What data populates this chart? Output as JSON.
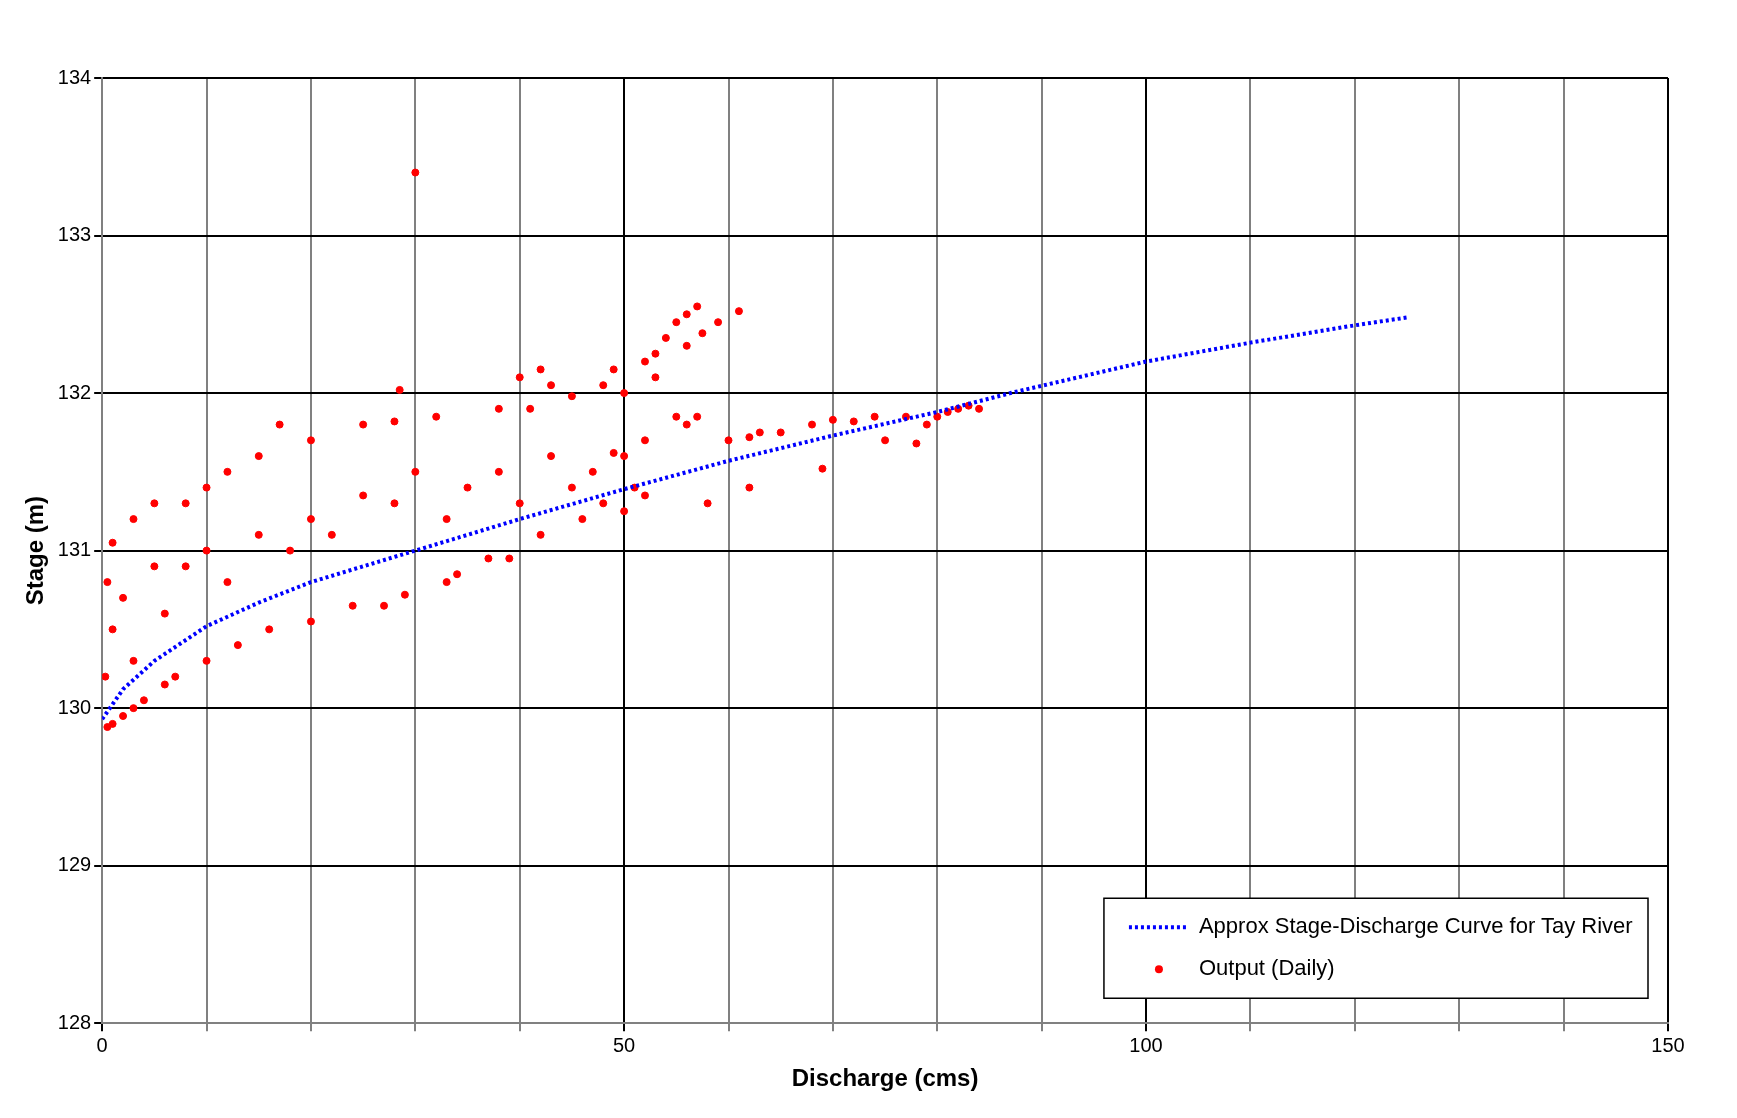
{
  "chart_data": {
    "type": "scatter",
    "xlabel": "Discharge (cms)",
    "ylabel": "Stage (m)",
    "xlim": [
      0,
      150
    ],
    "ylim": [
      128,
      134
    ],
    "xticks": [
      0,
      {
        "value": 10,
        "label": null
      },
      {
        "value": 20,
        "label": null
      },
      {
        "value": 30,
        "label": null
      },
      {
        "value": 40,
        "label": null
      },
      50,
      {
        "value": 60,
        "label": null
      },
      {
        "value": 70,
        "label": null
      },
      {
        "value": 80,
        "label": null
      },
      {
        "value": 90,
        "label": null
      },
      100,
      {
        "value": 110,
        "label": null
      },
      {
        "value": 120,
        "label": null
      },
      {
        "value": 130,
        "label": null
      },
      {
        "value": 140,
        "label": null
      },
      150
    ],
    "yticks": [
      128,
      129,
      130,
      131,
      132,
      133,
      134
    ],
    "grid": true,
    "legend": "bottom right",
    "series": [
      {
        "name": "Approx Stage-Discharge Curve for Tay River",
        "type": "line",
        "line_style": "dotted",
        "marker": "none",
        "color": "#0000ff",
        "x": [
          0,
          2,
          5,
          10,
          15,
          20,
          30,
          40,
          50,
          60,
          70,
          80,
          87,
          100,
          110,
          120,
          125
        ],
        "values": [
          129.93,
          130.12,
          130.3,
          130.52,
          130.67,
          130.8,
          131.0,
          131.2,
          131.39,
          131.57,
          131.73,
          131.88,
          132.0,
          132.2,
          132.32,
          132.43,
          132.48
        ]
      },
      {
        "name": "Output (Daily)",
        "type": "scatter",
        "marker": "circle",
        "color": "#ff0000",
        "x": [
          30,
          28.5,
          1,
          3,
          5,
          8,
          10,
          12,
          15,
          17,
          20,
          25,
          28,
          32,
          38,
          41,
          42,
          43,
          40,
          45,
          48,
          49,
          50,
          52,
          53,
          54,
          55,
          56,
          57,
          57.5,
          56,
          61,
          59,
          53,
          55,
          56,
          57,
          52,
          50,
          47,
          45,
          40,
          35,
          30,
          25,
          20,
          15,
          10,
          5,
          2,
          1,
          0.5,
          0.3,
          3,
          6,
          8,
          12,
          18,
          22,
          28,
          33,
          38,
          43,
          48,
          50,
          51,
          52,
          46,
          42,
          39,
          37,
          34,
          33,
          29,
          27,
          24,
          20,
          16,
          13,
          10,
          7,
          4,
          2,
          1,
          0.5,
          3,
          6,
          60,
          62,
          63,
          65,
          68,
          69,
          70,
          72,
          74,
          75,
          77,
          78,
          79,
          80,
          81,
          82,
          83,
          84,
          62,
          58,
          49
        ],
        "values": [
          133.4,
          132.02,
          131.05,
          131.2,
          131.3,
          131.3,
          131.4,
          131.5,
          131.6,
          131.8,
          131.7,
          131.8,
          131.82,
          131.85,
          131.9,
          131.9,
          132.15,
          132.05,
          132.1,
          131.98,
          132.05,
          132.15,
          132.0,
          132.2,
          132.25,
          132.35,
          132.45,
          132.5,
          132.55,
          132.38,
          132.3,
          132.52,
          132.45,
          132.1,
          131.85,
          131.8,
          131.85,
          131.7,
          131.6,
          131.5,
          131.4,
          131.3,
          131.4,
          131.5,
          131.35,
          131.2,
          131.1,
          131.0,
          130.9,
          130.7,
          130.5,
          130.8,
          130.2,
          130.3,
          130.6,
          130.9,
          130.8,
          131.0,
          131.1,
          131.3,
          131.2,
          131.5,
          131.6,
          131.3,
          131.25,
          131.4,
          131.35,
          131.2,
          131.1,
          130.95,
          130.95,
          130.85,
          130.8,
          130.72,
          130.65,
          130.65,
          130.55,
          130.5,
          130.4,
          130.3,
          130.2,
          130.05,
          129.95,
          129.9,
          129.88,
          130.0,
          130.15,
          131.7,
          131.72,
          131.75,
          131.75,
          131.8,
          131.52,
          131.83,
          131.82,
          131.85,
          131.7,
          131.85,
          131.68,
          131.8,
          131.85,
          131.88,
          131.9,
          131.92,
          131.9,
          131.4,
          131.3,
          131.62
        ]
      }
    ]
  }
}
